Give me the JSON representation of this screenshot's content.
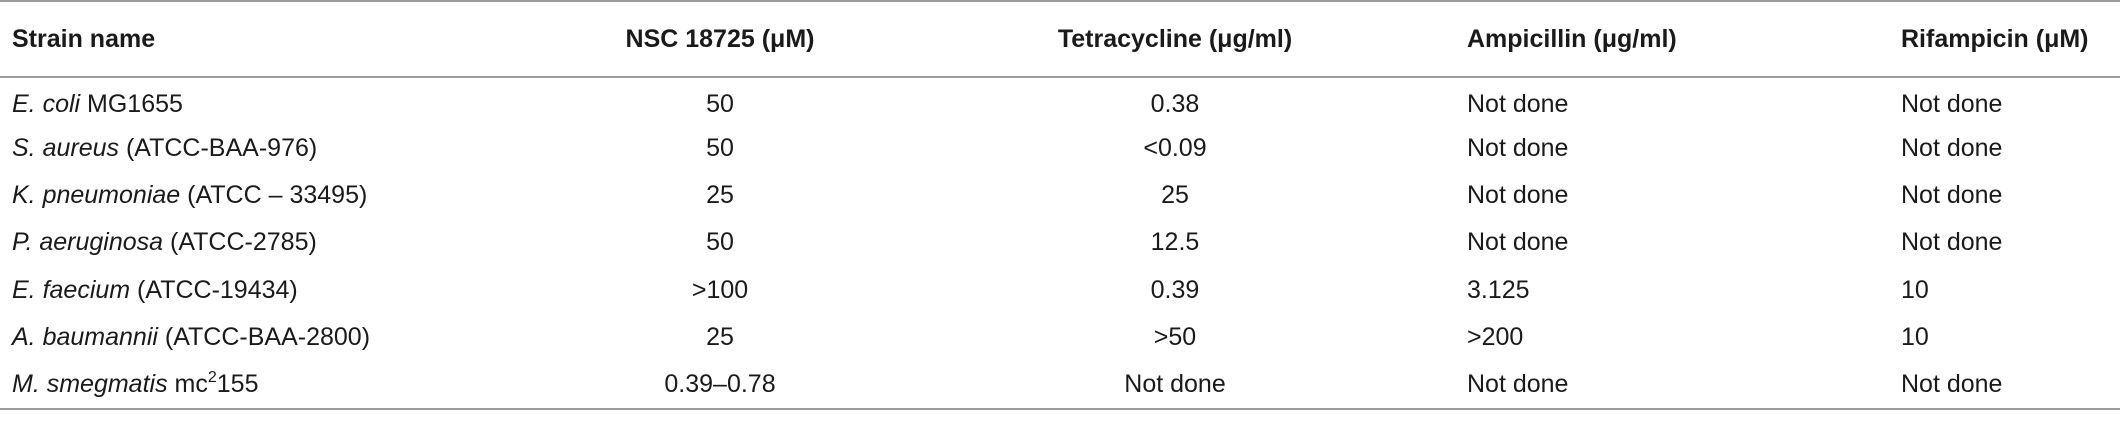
{
  "table": {
    "headers": [
      "Strain name",
      "NSC 18725 (μM)",
      "Tetracycline (μg/ml)",
      "Ampicillin (μg/ml)",
      "Rifampicin (μM)"
    ],
    "rows": [
      {
        "species": "E. coli",
        "strain": " MG1655",
        "sup": "",
        "strain_after": "",
        "nsc": "50",
        "tet": "0.38",
        "amp": "Not done",
        "rif": "Not done"
      },
      {
        "species": "S. aureus",
        "strain": " (ATCC-BAA-976)",
        "sup": "",
        "strain_after": "",
        "nsc": "50",
        "tet": "<0.09",
        "amp": "Not done",
        "rif": "Not done"
      },
      {
        "species": "K. pneumoniae",
        "strain": " (ATCC – 33495)",
        "sup": "",
        "strain_after": "",
        "nsc": "25",
        "tet": "25",
        "amp": "Not done",
        "rif": "Not done"
      },
      {
        "species": "P. aeruginosa",
        "strain": " (ATCC-2785)",
        "sup": "",
        "strain_after": "",
        "nsc": "50",
        "tet": "12.5",
        "amp": "Not done",
        "rif": "Not done"
      },
      {
        "species": "E. faecium",
        "strain": " (ATCC-19434)",
        "sup": "",
        "strain_after": "",
        "nsc": ">100",
        "tet": "0.39",
        "amp": "3.125",
        "rif": "10"
      },
      {
        "species": "A. baumannii",
        "strain": " (ATCC-BAA-2800)",
        "sup": "",
        "strain_after": "",
        "nsc": "25",
        "tet": ">50",
        "amp": ">200",
        "rif": "10"
      },
      {
        "species": "M. smegmatis",
        "strain": " mc",
        "sup": "2",
        "strain_after": "155",
        "nsc": "0.39–0.78",
        "tet": "Not done",
        "amp": "Not done",
        "rif": "Not done"
      }
    ]
  }
}
